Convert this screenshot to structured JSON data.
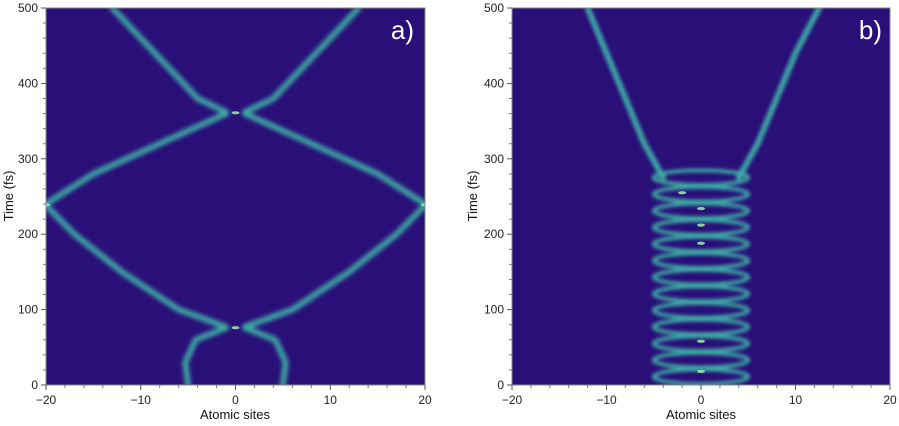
{
  "chart_data": [
    {
      "type": "heatmap",
      "panel_label": "a)",
      "xlabel": "Atomic sites",
      "ylabel": "Time (fs)",
      "xlim": [
        -20,
        20
      ],
      "ylim": [
        0,
        500
      ],
      "xticks": [
        -20,
        -10,
        0,
        10,
        20
      ],
      "yticks": [
        0,
        100,
        200,
        300,
        400,
        500
      ],
      "xtick_labels": [
        "−20",
        "−10",
        "0",
        "10",
        "20"
      ],
      "ytick_labels": [
        "0",
        "100",
        "200",
        "300",
        "400",
        "500"
      ],
      "background_color": "#2a0f79",
      "intensity_color": "#3fb4a6",
      "bright_color": "#9ef0a8",
      "trajectories": [
        {
          "points": [
            [
              -5,
              0
            ],
            [
              -5.3,
              30
            ],
            [
              -4.2,
              60
            ],
            [
              -1,
              76
            ]
          ]
        },
        {
          "points": [
            [
              5,
              0
            ],
            [
              5.3,
              30
            ],
            [
              4.2,
              60
            ],
            [
              1,
              76
            ]
          ]
        },
        {
          "points": [
            [
              -1,
              77
            ],
            [
              -6,
              100
            ],
            [
              -12,
              150
            ],
            [
              -17,
              200
            ],
            [
              -20,
              238
            ]
          ]
        },
        {
          "points": [
            [
              1,
              77
            ],
            [
              6,
              100
            ],
            [
              12,
              150
            ],
            [
              17,
              200
            ],
            [
              20,
              238
            ]
          ]
        },
        {
          "points": [
            [
              -20,
              240
            ],
            [
              -15,
              280
            ],
            [
              -8,
              320
            ],
            [
              -1,
              360
            ]
          ]
        },
        {
          "points": [
            [
              20,
              240
            ],
            [
              15,
              280
            ],
            [
              8,
              320
            ],
            [
              1,
              360
            ]
          ]
        },
        {
          "points": [
            [
              -1,
              362
            ],
            [
              -4,
              380
            ],
            [
              -7,
              420
            ],
            [
              -10,
              460
            ],
            [
              -13,
              500
            ]
          ]
        },
        {
          "points": [
            [
              1,
              362
            ],
            [
              4,
              380
            ],
            [
              7,
              420
            ],
            [
              10,
              460
            ],
            [
              13,
              500
            ]
          ]
        }
      ],
      "bright_spots": [
        [
          0,
          361
        ],
        [
          -20,
          239
        ],
        [
          20,
          239
        ],
        [
          0,
          76
        ]
      ]
    },
    {
      "type": "heatmap",
      "panel_label": "b)",
      "xlabel": "Atomic sites",
      "ylabel": "Time (fs)",
      "xlim": [
        -20,
        20
      ],
      "ylim": [
        0,
        500
      ],
      "xticks": [
        -20,
        -10,
        0,
        10,
        20
      ],
      "yticks": [
        0,
        100,
        200,
        300,
        400,
        500
      ],
      "xtick_labels": [
        "−20",
        "−10",
        "0",
        "10",
        "20"
      ],
      "ytick_labels": [
        "0",
        "100",
        "200",
        "300",
        "400",
        "500"
      ],
      "background_color": "#2a0f79",
      "intensity_color": "#3fb4a6",
      "bright_color": "#9ef0a8",
      "oscillation": {
        "t_start": 0,
        "t_end": 275,
        "period": 22,
        "amplitude": 5
      },
      "trajectories": [
        {
          "points": [
            [
              -4,
              275
            ],
            [
              -6,
              320
            ],
            [
              -8,
              380
            ],
            [
              -10,
              440
            ],
            [
              -12,
              500
            ]
          ]
        },
        {
          "points": [
            [
              4,
              275
            ],
            [
              6,
              320
            ],
            [
              8,
              380
            ],
            [
              10,
              440
            ],
            [
              12.5,
              500
            ]
          ]
        }
      ],
      "bright_spots": [
        [
          0,
          18
        ],
        [
          0,
          58
        ],
        [
          0,
          188
        ],
        [
          0,
          212
        ],
        [
          0,
          234
        ],
        [
          -2,
          255
        ]
      ]
    }
  ]
}
